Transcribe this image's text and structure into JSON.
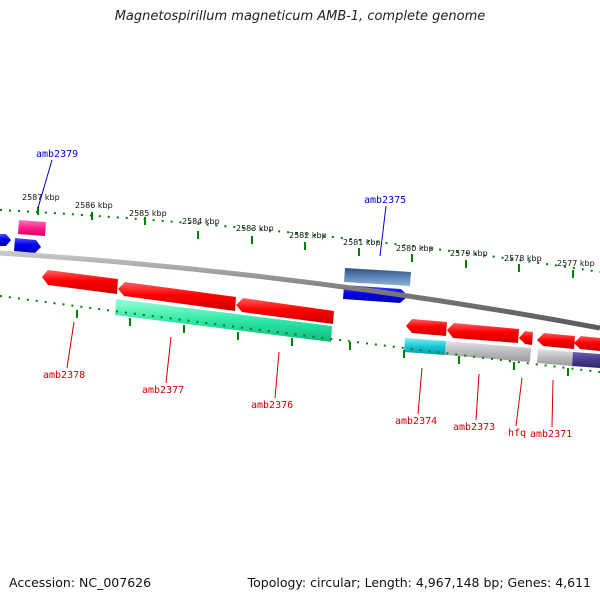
{
  "title": "Magnetospirillum magneticum AMB-1, complete genome",
  "footer": {
    "accession": "Accession: NC_007626",
    "summary": "Topology: circular; Length: 4,967,148 bp; Genes: 4,611"
  },
  "colors": {
    "reverse_gene": "#ff0000",
    "forward_gene": "#0000ff",
    "cds_aqua": "#1fe7a5",
    "cds_cyan": "#19c8d4",
    "cds_gray": "#b8b8bc",
    "cds_steel": "#4f7aa8",
    "cds_purple": "#4b3f8f",
    "pink_gene": "#ff2b8a",
    "backbone": "#808080",
    "ticks": "#008000",
    "label_forward": "#0000cc",
    "label_reverse": "#cc0000"
  },
  "scale_labels": [
    "2587 kbp",
    "2586 kbp",
    "2585 kbp",
    "2584 kbp",
    "2583 kbp",
    "2582 kbp",
    "2581 kbp",
    "2580 kbp",
    "2579 kbp",
    "2578 kbp",
    "2577 kbp"
  ],
  "genes": [
    {
      "name": "amb2379",
      "strand": "forward"
    },
    {
      "name": "amb2375",
      "strand": "forward"
    },
    {
      "name": "amb2378",
      "strand": "reverse"
    },
    {
      "name": "amb2377",
      "strand": "reverse"
    },
    {
      "name": "amb2376",
      "strand": "reverse"
    },
    {
      "name": "amb2374",
      "strand": "reverse"
    },
    {
      "name": "amb2373",
      "strand": "reverse"
    },
    {
      "name": "hfq",
      "strand": "reverse"
    },
    {
      "name": "amb2371",
      "strand": "reverse"
    }
  ]
}
